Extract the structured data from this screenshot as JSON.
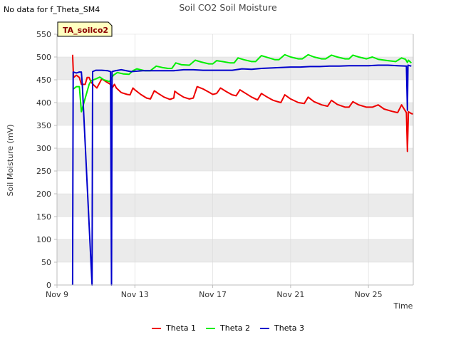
{
  "notice": "No data for f_Theta_SM4",
  "badge": "TA_soilco2",
  "colors": {
    "band": "#ebebeb",
    "grid": "#d9d9d9",
    "axis": "#bcbcbc",
    "text": "#333333",
    "badge_bg": "#ffffc0",
    "badge_text": "#8b0000"
  },
  "chart_data": {
    "type": "line",
    "title": "Soil CO2 Soil Moisture",
    "xlabel": "Time",
    "ylabel": "Soil Moisture (mV)",
    "xlim": [
      0,
      18.3
    ],
    "ylim": [
      0,
      550
    ],
    "yticks": [
      0,
      50,
      100,
      150,
      200,
      250,
      300,
      350,
      400,
      450,
      500,
      550
    ],
    "xticks": [
      {
        "value": 0,
        "label": "Nov 9"
      },
      {
        "value": 4,
        "label": "Nov 13"
      },
      {
        "value": 8,
        "label": "Nov 17"
      },
      {
        "value": 12,
        "label": "Nov 21"
      },
      {
        "value": 16,
        "label": "Nov 25"
      }
    ],
    "x_unit": "days since Nov 9",
    "series": [
      {
        "name": "Theta 1",
        "color": "#ee0000",
        "points": [
          [
            0.8,
            505
          ],
          [
            0.85,
            455
          ],
          [
            1.0,
            460
          ],
          [
            1.15,
            455
          ],
          [
            1.25,
            440
          ],
          [
            1.45,
            440
          ],
          [
            1.55,
            455
          ],
          [
            1.65,
            455
          ],
          [
            1.75,
            445
          ],
          [
            1.9,
            438
          ],
          [
            2.05,
            432
          ],
          [
            2.3,
            452
          ],
          [
            2.55,
            445
          ],
          [
            2.75,
            440
          ],
          [
            2.8,
            430
          ],
          [
            2.95,
            440
          ],
          [
            3.05,
            432
          ],
          [
            3.3,
            422
          ],
          [
            3.6,
            418
          ],
          [
            3.75,
            417
          ],
          [
            3.9,
            432
          ],
          [
            4.0,
            428
          ],
          [
            4.3,
            418
          ],
          [
            4.6,
            410
          ],
          [
            4.8,
            408
          ],
          [
            5.0,
            426
          ],
          [
            5.2,
            420
          ],
          [
            5.5,
            412
          ],
          [
            5.8,
            407
          ],
          [
            6.0,
            410
          ],
          [
            6.05,
            425
          ],
          [
            6.2,
            420
          ],
          [
            6.5,
            412
          ],
          [
            6.8,
            408
          ],
          [
            7.0,
            410
          ],
          [
            7.2,
            435
          ],
          [
            7.5,
            430
          ],
          [
            7.8,
            423
          ],
          [
            8.0,
            418
          ],
          [
            8.2,
            420
          ],
          [
            8.4,
            432
          ],
          [
            8.7,
            424
          ],
          [
            9.0,
            417
          ],
          [
            9.2,
            415
          ],
          [
            9.4,
            428
          ],
          [
            9.7,
            420
          ],
          [
            10.0,
            412
          ],
          [
            10.3,
            406
          ],
          [
            10.5,
            420
          ],
          [
            10.8,
            412
          ],
          [
            11.1,
            405
          ],
          [
            11.5,
            400
          ],
          [
            11.7,
            417
          ],
          [
            12.0,
            408
          ],
          [
            12.4,
            400
          ],
          [
            12.7,
            398
          ],
          [
            12.9,
            412
          ],
          [
            13.2,
            402
          ],
          [
            13.6,
            395
          ],
          [
            13.9,
            392
          ],
          [
            14.1,
            405
          ],
          [
            14.4,
            396
          ],
          [
            14.8,
            390
          ],
          [
            15.0,
            390
          ],
          [
            15.2,
            402
          ],
          [
            15.5,
            395
          ],
          [
            15.9,
            390
          ],
          [
            16.2,
            390
          ],
          [
            16.5,
            395
          ],
          [
            16.8,
            386
          ],
          [
            17.2,
            381
          ],
          [
            17.5,
            378
          ],
          [
            17.7,
            395
          ],
          [
            17.95,
            378
          ],
          [
            18.0,
            293
          ],
          [
            18.05,
            380
          ],
          [
            18.2,
            376
          ],
          [
            18.3,
            375
          ]
        ]
      },
      {
        "name": "Theta 2",
        "color": "#00ee00",
        "points": [
          [
            0.85,
            430
          ],
          [
            1.0,
            435
          ],
          [
            1.15,
            435
          ],
          [
            1.25,
            380
          ],
          [
            1.65,
            440
          ],
          [
            1.75,
            448
          ],
          [
            2.0,
            452
          ],
          [
            2.2,
            456
          ],
          [
            2.4,
            450
          ],
          [
            2.7,
            446
          ],
          [
            2.8,
            454
          ],
          [
            2.9,
            460
          ],
          [
            3.1,
            466
          ],
          [
            3.4,
            463
          ],
          [
            3.7,
            462
          ],
          [
            3.9,
            470
          ],
          [
            4.1,
            474
          ],
          [
            4.5,
            470
          ],
          [
            4.8,
            470
          ],
          [
            5.1,
            480
          ],
          [
            5.4,
            477
          ],
          [
            5.7,
            475
          ],
          [
            5.9,
            475
          ],
          [
            6.1,
            487
          ],
          [
            6.4,
            483
          ],
          [
            6.8,
            482
          ],
          [
            7.1,
            493
          ],
          [
            7.4,
            489
          ],
          [
            7.8,
            485
          ],
          [
            8.0,
            485
          ],
          [
            8.2,
            492
          ],
          [
            8.5,
            490
          ],
          [
            8.9,
            487
          ],
          [
            9.1,
            487
          ],
          [
            9.3,
            498
          ],
          [
            9.6,
            494
          ],
          [
            10.0,
            490
          ],
          [
            10.2,
            490
          ],
          [
            10.5,
            503
          ],
          [
            10.8,
            499
          ],
          [
            11.2,
            494
          ],
          [
            11.4,
            494
          ],
          [
            11.7,
            505
          ],
          [
            12.0,
            500
          ],
          [
            12.4,
            496
          ],
          [
            12.6,
            496
          ],
          [
            12.9,
            505
          ],
          [
            13.2,
            500
          ],
          [
            13.6,
            496
          ],
          [
            13.8,
            496
          ],
          [
            14.1,
            504
          ],
          [
            14.4,
            500
          ],
          [
            14.8,
            496
          ],
          [
            15.0,
            496
          ],
          [
            15.2,
            504
          ],
          [
            15.5,
            500
          ],
          [
            15.9,
            496
          ],
          [
            16.2,
            500
          ],
          [
            16.5,
            495
          ],
          [
            17.0,
            492
          ],
          [
            17.4,
            490
          ],
          [
            17.7,
            498
          ],
          [
            17.9,
            495
          ],
          [
            18.0,
            488
          ],
          [
            18.05,
            493
          ],
          [
            18.2,
            487
          ]
        ]
      },
      {
        "name": "Theta 3",
        "color": "#0000cc",
        "points": [
          [
            0.8,
            0
          ],
          [
            0.83,
            467
          ],
          [
            1.0,
            465
          ],
          [
            1.15,
            467
          ],
          [
            1.25,
            467
          ],
          [
            1.3,
            440
          ],
          [
            1.8,
            0
          ],
          [
            1.83,
            468
          ],
          [
            2.0,
            471
          ],
          [
            2.3,
            471
          ],
          [
            2.6,
            470
          ],
          [
            2.75,
            468
          ],
          [
            2.8,
            0
          ],
          [
            2.83,
            468
          ],
          [
            3.0,
            470
          ],
          [
            3.3,
            472
          ],
          [
            3.8,
            468
          ],
          [
            4.4,
            470
          ],
          [
            5.0,
            470
          ],
          [
            5.5,
            470
          ],
          [
            6.0,
            470
          ],
          [
            6.5,
            472
          ],
          [
            7.0,
            472
          ],
          [
            7.5,
            471
          ],
          [
            8.0,
            471
          ],
          [
            8.5,
            471
          ],
          [
            9.0,
            471
          ],
          [
            9.5,
            474
          ],
          [
            10.0,
            473
          ],
          [
            10.5,
            475
          ],
          [
            11.0,
            476
          ],
          [
            11.5,
            477
          ],
          [
            12.0,
            478
          ],
          [
            12.5,
            478
          ],
          [
            13.0,
            479
          ],
          [
            13.5,
            479
          ],
          [
            14.0,
            480
          ],
          [
            14.5,
            480
          ],
          [
            15.0,
            481
          ],
          [
            15.5,
            481
          ],
          [
            16.0,
            481
          ],
          [
            16.5,
            482
          ],
          [
            17.0,
            482
          ],
          [
            17.5,
            481
          ],
          [
            17.95,
            480
          ],
          [
            18.0,
            383
          ],
          [
            18.03,
            482
          ],
          [
            18.2,
            480
          ]
        ]
      }
    ],
    "legend_position": "bottom-center"
  }
}
